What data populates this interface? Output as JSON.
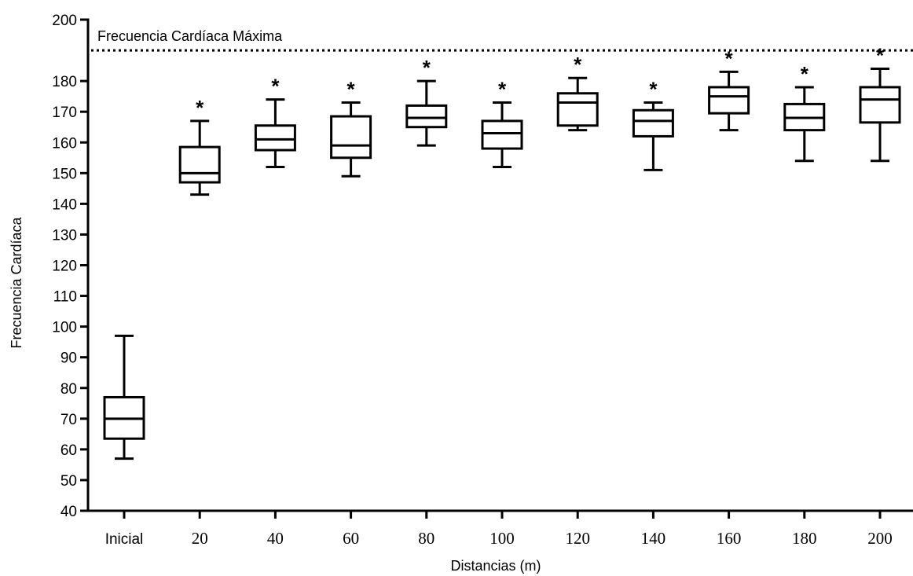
{
  "chart_data": {
    "type": "boxplot",
    "xlabel": "Distancias (m)",
    "ylabel": "Frecuencia Cardíaca",
    "ylim": [
      40,
      200
    ],
    "yticks": [
      40,
      50,
      60,
      70,
      80,
      90,
      100,
      110,
      120,
      130,
      140,
      150,
      160,
      170,
      180,
      200
    ],
    "categories": [
      "Inicial",
      "20",
      "40",
      "60",
      "80",
      "100",
      "120",
      "140",
      "160",
      "180",
      "200"
    ],
    "boxes": [
      {
        "min": 57,
        "q1": 63.5,
        "median": 70,
        "q3": 77,
        "max": 97,
        "significant": false
      },
      {
        "min": 143,
        "q1": 147,
        "median": 150,
        "q3": 158.5,
        "max": 167,
        "significant": true
      },
      {
        "min": 152,
        "q1": 157.5,
        "median": 161,
        "q3": 165.5,
        "max": 174,
        "significant": true
      },
      {
        "min": 149,
        "q1": 155,
        "median": 159,
        "q3": 168.5,
        "max": 173,
        "significant": true
      },
      {
        "min": 159,
        "q1": 165,
        "median": 168,
        "q3": 172,
        "max": 180,
        "significant": true
      },
      {
        "min": 152,
        "q1": 158,
        "median": 163,
        "q3": 167,
        "max": 173,
        "significant": true
      },
      {
        "min": 164,
        "q1": 165.5,
        "median": 173,
        "q3": 176,
        "max": 181,
        "significant": true
      },
      {
        "min": 151,
        "q1": 162,
        "median": 167,
        "q3": 170.5,
        "max": 173,
        "significant": true
      },
      {
        "min": 164,
        "q1": 169.5,
        "median": 175,
        "q3": 178,
        "max": 183,
        "significant": true
      },
      {
        "min": 154,
        "q1": 164,
        "median": 168,
        "q3": 172.5,
        "max": 178,
        "significant": true
      },
      {
        "min": 154,
        "q1": 166.5,
        "median": 174,
        "q3": 178,
        "max": 184,
        "significant": true
      }
    ],
    "significance_marker": "*",
    "reference_line": {
      "label": "Frecuencia Cardíaca Máxima",
      "value": 190,
      "style": "dotted"
    },
    "grid": false,
    "legend": "none"
  }
}
